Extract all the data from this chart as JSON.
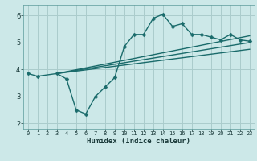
{
  "background_color": "#cce8e8",
  "grid_color": "#aacccc",
  "line_color": "#1a6b6b",
  "xlabel": "Humidex (Indice chaleur)",
  "xlim": [
    -0.5,
    23.5
  ],
  "ylim": [
    1.8,
    6.4
  ],
  "yticks": [
    2,
    3,
    4,
    5,
    6
  ],
  "xticks": [
    0,
    1,
    2,
    3,
    4,
    5,
    6,
    7,
    8,
    9,
    10,
    11,
    12,
    13,
    14,
    15,
    16,
    17,
    18,
    19,
    20,
    21,
    22,
    23
  ],
  "main_x": [
    0,
    1,
    3,
    4,
    5,
    6,
    7,
    8,
    9,
    10,
    11,
    12,
    13,
    14,
    15,
    16,
    17,
    18,
    19,
    20,
    21,
    22,
    23
  ],
  "main_y": [
    3.85,
    3.75,
    3.85,
    3.65,
    2.5,
    2.35,
    3.0,
    3.35,
    3.7,
    4.85,
    5.3,
    5.3,
    5.9,
    6.05,
    5.6,
    5.7,
    5.3,
    5.3,
    5.2,
    5.1,
    5.3,
    5.1,
    5.05
  ],
  "line2_x": [
    3,
    23
  ],
  "line2_y": [
    3.85,
    5.25
  ],
  "line3_x": [
    3,
    23
  ],
  "line3_y": [
    3.85,
    5.0
  ],
  "line4_x": [
    3,
    23
  ],
  "line4_y": [
    3.85,
    4.75
  ],
  "markersize": 2.5,
  "linewidth": 1.0
}
